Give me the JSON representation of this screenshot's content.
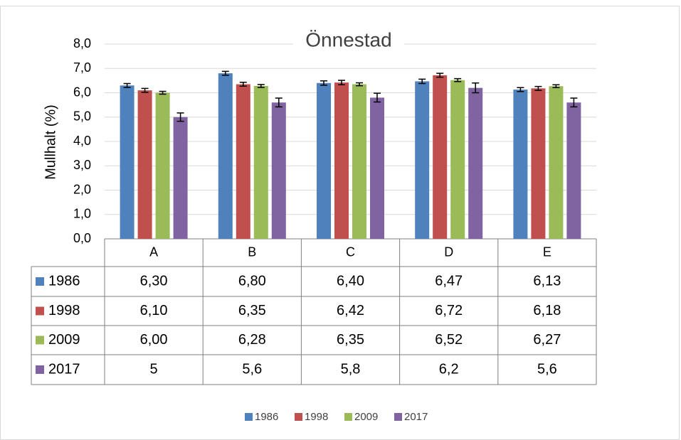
{
  "chart_data": {
    "type": "bar",
    "title": "Önnestad",
    "y_label": "Mullhalt (%)",
    "categories": [
      "A",
      "B",
      "C",
      "D",
      "E"
    ],
    "series": [
      {
        "name": "1986",
        "color": "#4f81bd",
        "values": [
          6.3,
          6.8,
          6.4,
          6.47,
          6.13
        ],
        "value_labels": [
          "6,30",
          "6,80",
          "6,40",
          "6,47",
          "6,13"
        ],
        "errors": [
          0.08,
          0.08,
          0.09,
          0.09,
          0.08
        ]
      },
      {
        "name": "1998",
        "color": "#c0504d",
        "values": [
          6.1,
          6.35,
          6.42,
          6.72,
          6.18
        ],
        "value_labels": [
          "6,10",
          "6,35",
          "6,42",
          "6,72",
          "6,18"
        ],
        "errors": [
          0.08,
          0.08,
          0.09,
          0.08,
          0.08
        ]
      },
      {
        "name": "2009",
        "color": "#9bbb59",
        "values": [
          6.0,
          6.28,
          6.35,
          6.52,
          6.27
        ],
        "value_labels": [
          "6,00",
          "6,28",
          "6,35",
          "6,52",
          "6,27"
        ],
        "errors": [
          0.06,
          0.06,
          0.06,
          0.06,
          0.06
        ]
      },
      {
        "name": "2017",
        "color": "#8064a2",
        "values": [
          5,
          5.6,
          5.8,
          6.2,
          5.6
        ],
        "value_labels": [
          "5",
          "5,6",
          "5,8",
          "6,2",
          "5,6"
        ],
        "errors": [
          0.17,
          0.18,
          0.18,
          0.2,
          0.18
        ]
      }
    ],
    "ylim": [
      0,
      8
    ],
    "yticks": [
      {
        "value": 0,
        "label": "0,0"
      },
      {
        "value": 1,
        "label": "1,0"
      },
      {
        "value": 2,
        "label": "2,0"
      },
      {
        "value": 3,
        "label": "3,0"
      },
      {
        "value": 4,
        "label": "4,0"
      },
      {
        "value": 5,
        "label": "5,0"
      },
      {
        "value": 6,
        "label": "6,0"
      },
      {
        "value": 7,
        "label": "7,0"
      },
      {
        "value": 8,
        "label": "8,0"
      }
    ],
    "grid": true,
    "legend": "bottom",
    "data_table": true
  }
}
